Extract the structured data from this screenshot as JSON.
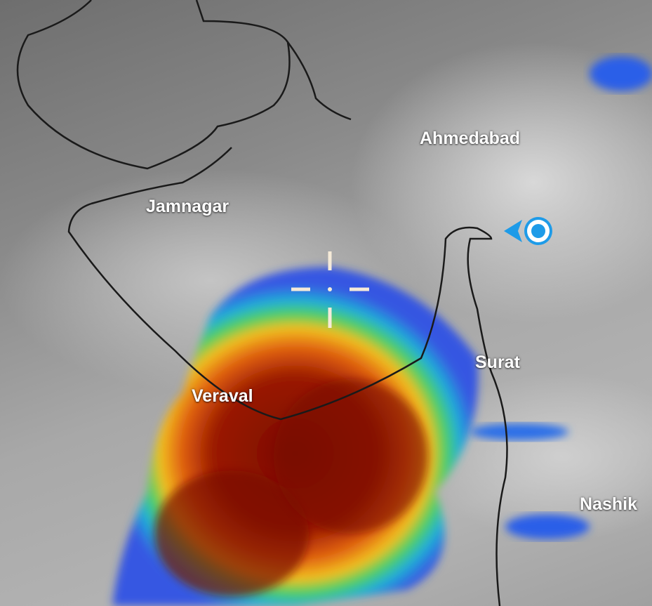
{
  "map": {
    "type": "satellite infrared weather overlay",
    "cities": [
      {
        "name": "Ahmedabad"
      },
      {
        "name": "Jamnagar"
      },
      {
        "name": "Surat"
      },
      {
        "name": "Veraval"
      },
      {
        "name": "Nashik"
      }
    ],
    "icons": {
      "location": "my-location-icon",
      "crosshair": "crosshair-icon"
    },
    "colors": {
      "accent": "#1e9be8",
      "coast": "#1a1a1a",
      "storm_core": "#7a0a00",
      "storm_mid": "#e06010",
      "storm_edge": "#2a6ee8"
    }
  }
}
